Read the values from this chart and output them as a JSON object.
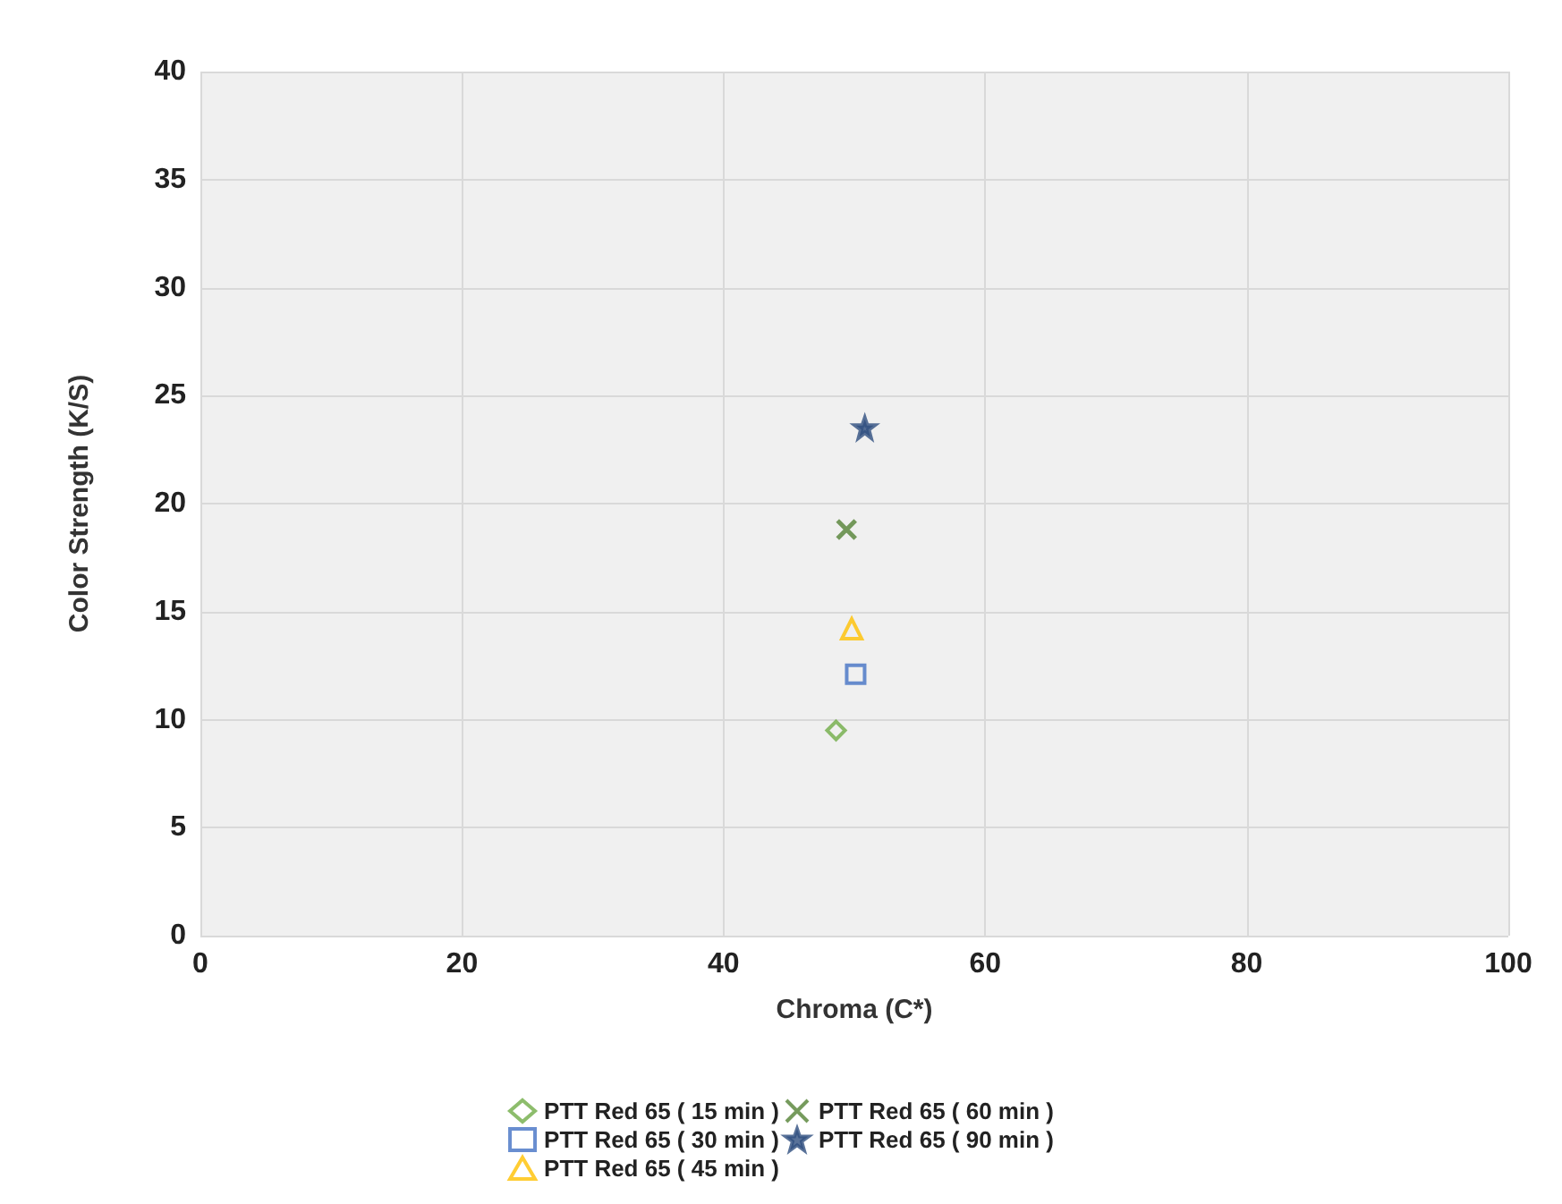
{
  "chart_data": {
    "type": "scatter",
    "xlabel": "Chroma (C*)",
    "ylabel": "Color Strength (K/S)",
    "xlim": [
      0,
      100
    ],
    "xticks": [
      0,
      20,
      40,
      60,
      80,
      100
    ],
    "ylim": [
      0,
      40
    ],
    "yticks": [
      0,
      5,
      10,
      15,
      20,
      25,
      30,
      35,
      40
    ],
    "grid": true,
    "legend": "bottom",
    "series": [
      {
        "name": "PTT Red 65 ( 15 min )",
        "color": "#70ad47",
        "marker": "diamond",
        "x": [
          48.6
        ],
        "values": [
          9.5
        ]
      },
      {
        "name": "PTT Red 65 ( 30 min )",
        "color": "#4472c4",
        "marker": "square",
        "x": [
          50.1
        ],
        "values": [
          12.1
        ]
      },
      {
        "name": "PTT Red 65 ( 45 min )",
        "color": "#ffc000",
        "marker": "triangle",
        "x": [
          49.8
        ],
        "values": [
          14.2
        ]
      },
      {
        "name": "PTT Red 65 ( 60 min )",
        "color": "#548235",
        "marker": "cross",
        "x": [
          49.4
        ],
        "values": [
          18.8
        ]
      },
      {
        "name": "PTT Red 65 ( 90 min )",
        "color": "#2f4f7f",
        "marker": "star",
        "x": [
          50.8
        ],
        "values": [
          23.5
        ]
      }
    ]
  }
}
